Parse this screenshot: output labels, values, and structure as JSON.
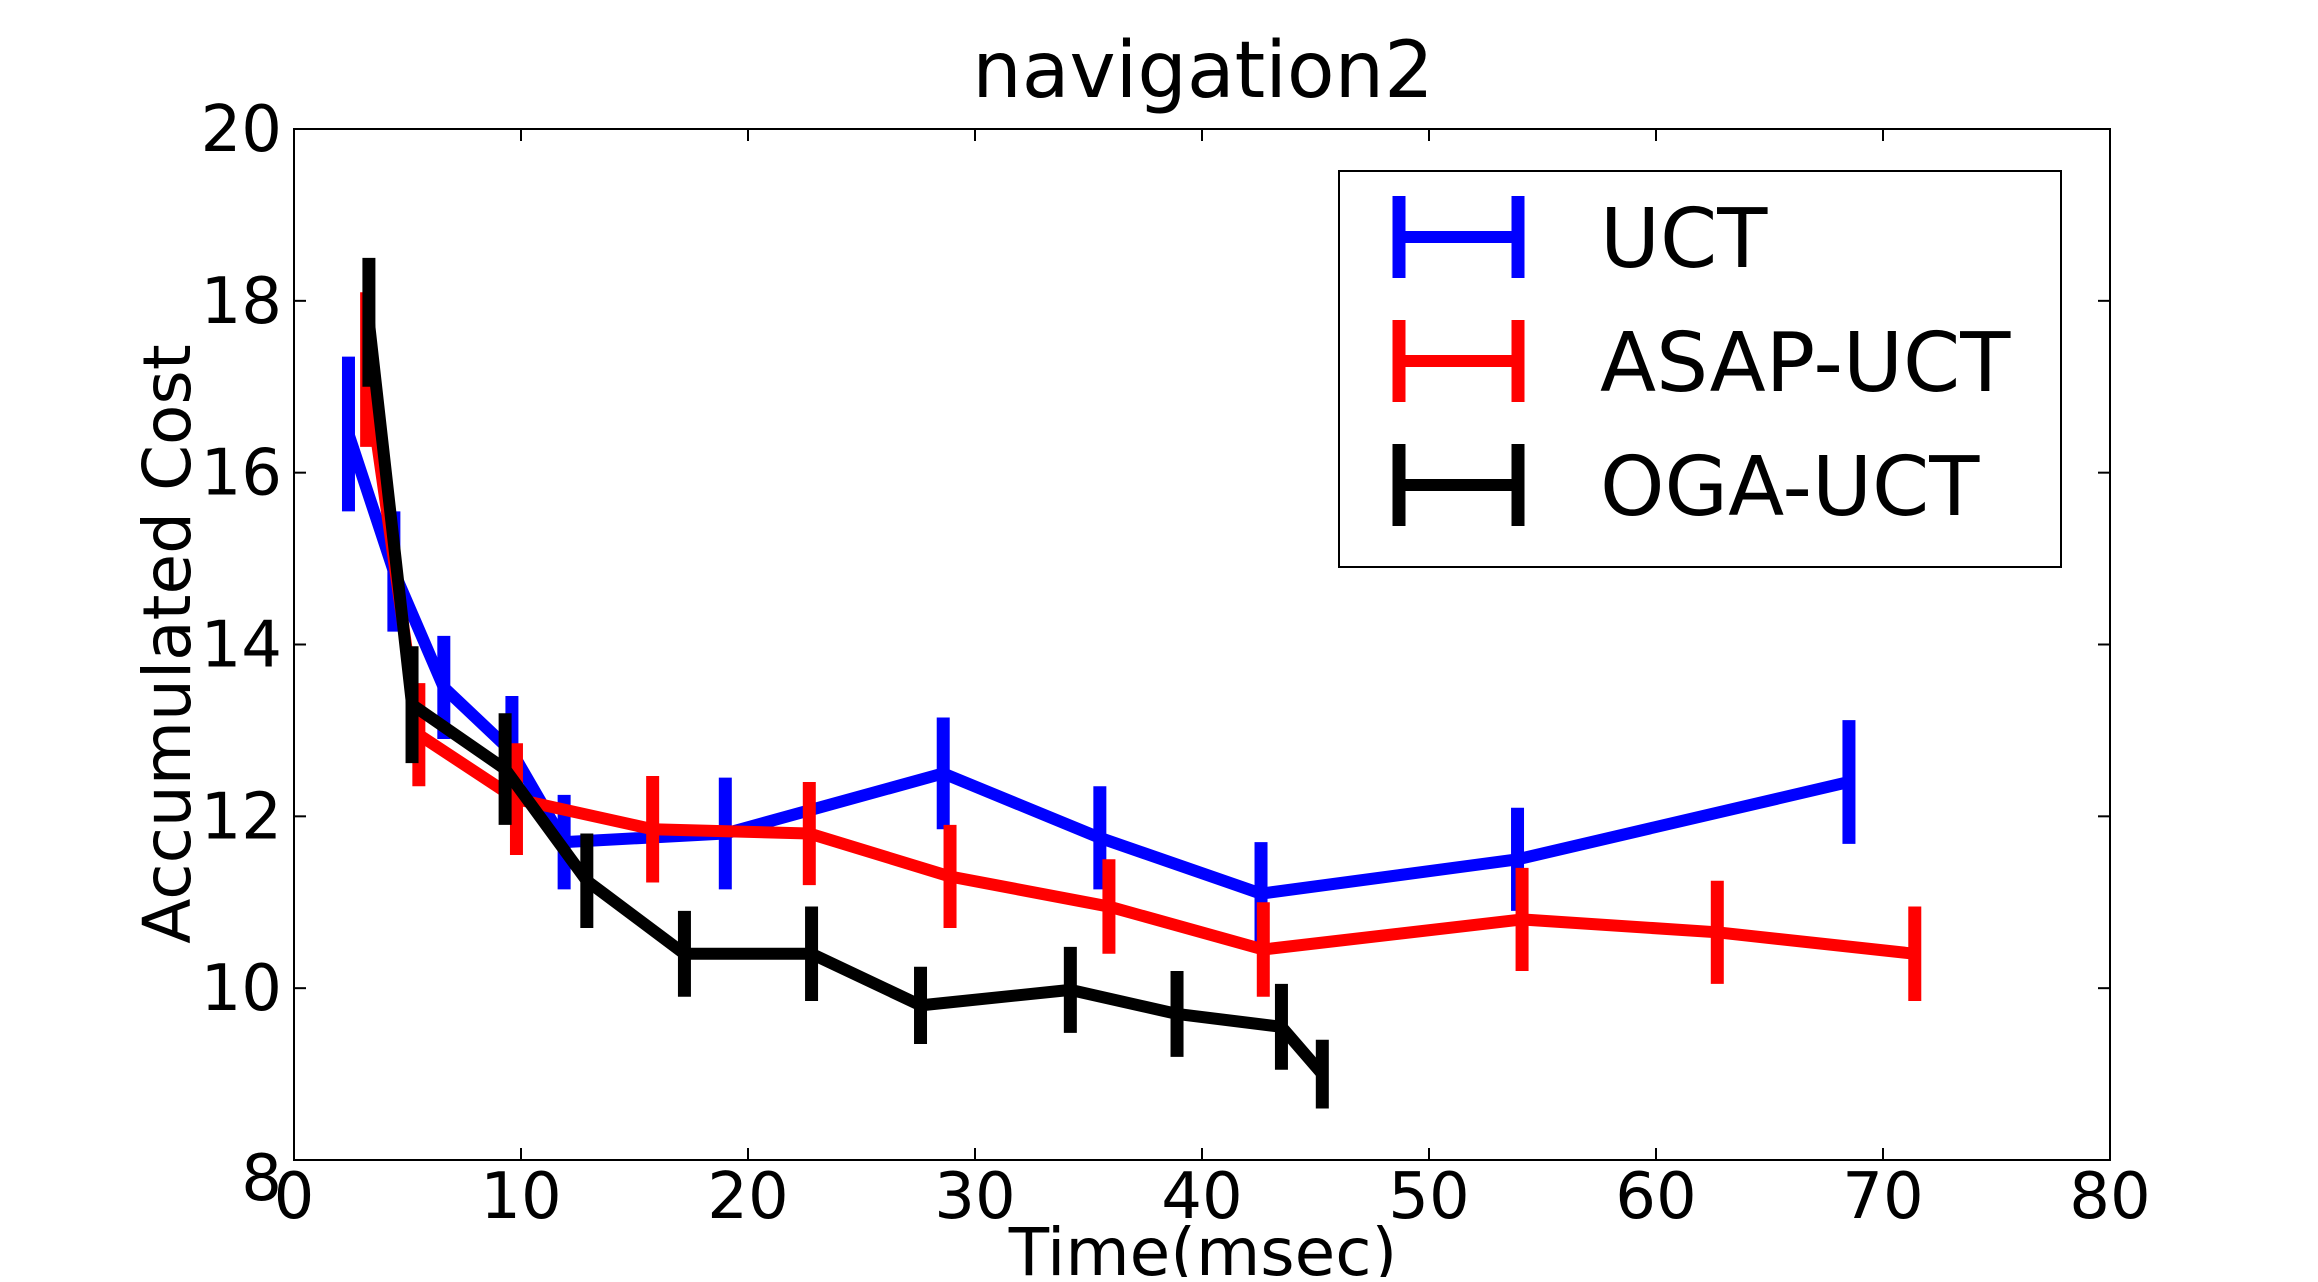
{
  "chart_data": {
    "type": "line",
    "title": "navigation2",
    "xlabel": "Time(msec)",
    "ylabel": "Accumulated Cost",
    "xlim": [
      0,
      80
    ],
    "ylim": [
      8,
      20
    ],
    "xticks": [
      "0",
      "10",
      "20",
      "30",
      "40",
      "50",
      "60",
      "70",
      "80"
    ],
    "yticks": [
      "8",
      "10",
      "12",
      "14",
      "16",
      "18",
      "20"
    ],
    "grid": false,
    "legend_position": "top-right",
    "series": [
      {
        "name": "UCT",
        "color": "#0000ff",
        "points": [
          {
            "x": 2.4,
            "y": 16.45,
            "err": 0.9
          },
          {
            "x": 4.4,
            "y": 14.85,
            "err": 0.7
          },
          {
            "x": 6.6,
            "y": 13.5,
            "err": 0.6
          },
          {
            "x": 9.6,
            "y": 12.75,
            "err": 0.65
          },
          {
            "x": 11.9,
            "y": 11.7,
            "err": 0.55
          },
          {
            "x": 19.0,
            "y": 11.8,
            "err": 0.65
          },
          {
            "x": 28.6,
            "y": 12.5,
            "err": 0.65
          },
          {
            "x": 35.5,
            "y": 11.75,
            "err": 0.6
          },
          {
            "x": 42.6,
            "y": 11.1,
            "err": 0.6
          },
          {
            "x": 53.9,
            "y": 11.5,
            "err": 0.6
          },
          {
            "x": 68.5,
            "y": 12.4,
            "err": 0.72
          }
        ]
      },
      {
        "name": "ASAP-UCT",
        "color": "#ff0000",
        "points": [
          {
            "x": 3.2,
            "y": 17.2,
            "err": 0.9
          },
          {
            "x": 5.5,
            "y": 12.95,
            "err": 0.6
          },
          {
            "x": 9.8,
            "y": 12.2,
            "err": 0.65
          },
          {
            "x": 15.8,
            "y": 11.85,
            "err": 0.62
          },
          {
            "x": 22.7,
            "y": 11.8,
            "err": 0.6
          },
          {
            "x": 28.9,
            "y": 11.3,
            "err": 0.6
          },
          {
            "x": 35.9,
            "y": 10.95,
            "err": 0.55
          },
          {
            "x": 42.7,
            "y": 10.45,
            "err": 0.55
          },
          {
            "x": 54.1,
            "y": 10.8,
            "err": 0.6
          },
          {
            "x": 62.7,
            "y": 10.65,
            "err": 0.6
          },
          {
            "x": 71.4,
            "y": 10.4,
            "err": 0.55
          }
        ]
      },
      {
        "name": "OGA-UCT",
        "color": "#000000",
        "points": [
          {
            "x": 3.3,
            "y": 17.75,
            "err": 0.75
          },
          {
            "x": 5.2,
            "y": 13.3,
            "err": 0.68
          },
          {
            "x": 9.3,
            "y": 12.55,
            "err": 0.65
          },
          {
            "x": 12.9,
            "y": 11.25,
            "err": 0.55
          },
          {
            "x": 17.2,
            "y": 10.4,
            "err": 0.5
          },
          {
            "x": 22.8,
            "y": 10.4,
            "err": 0.55
          },
          {
            "x": 27.6,
            "y": 9.8,
            "err": 0.45
          },
          {
            "x": 34.2,
            "y": 9.98,
            "err": 0.5
          },
          {
            "x": 38.9,
            "y": 9.7,
            "err": 0.5
          },
          {
            "x": 43.5,
            "y": 9.55,
            "err": 0.5
          },
          {
            "x": 45.3,
            "y": 9.0,
            "err": 0.4
          }
        ]
      }
    ]
  }
}
